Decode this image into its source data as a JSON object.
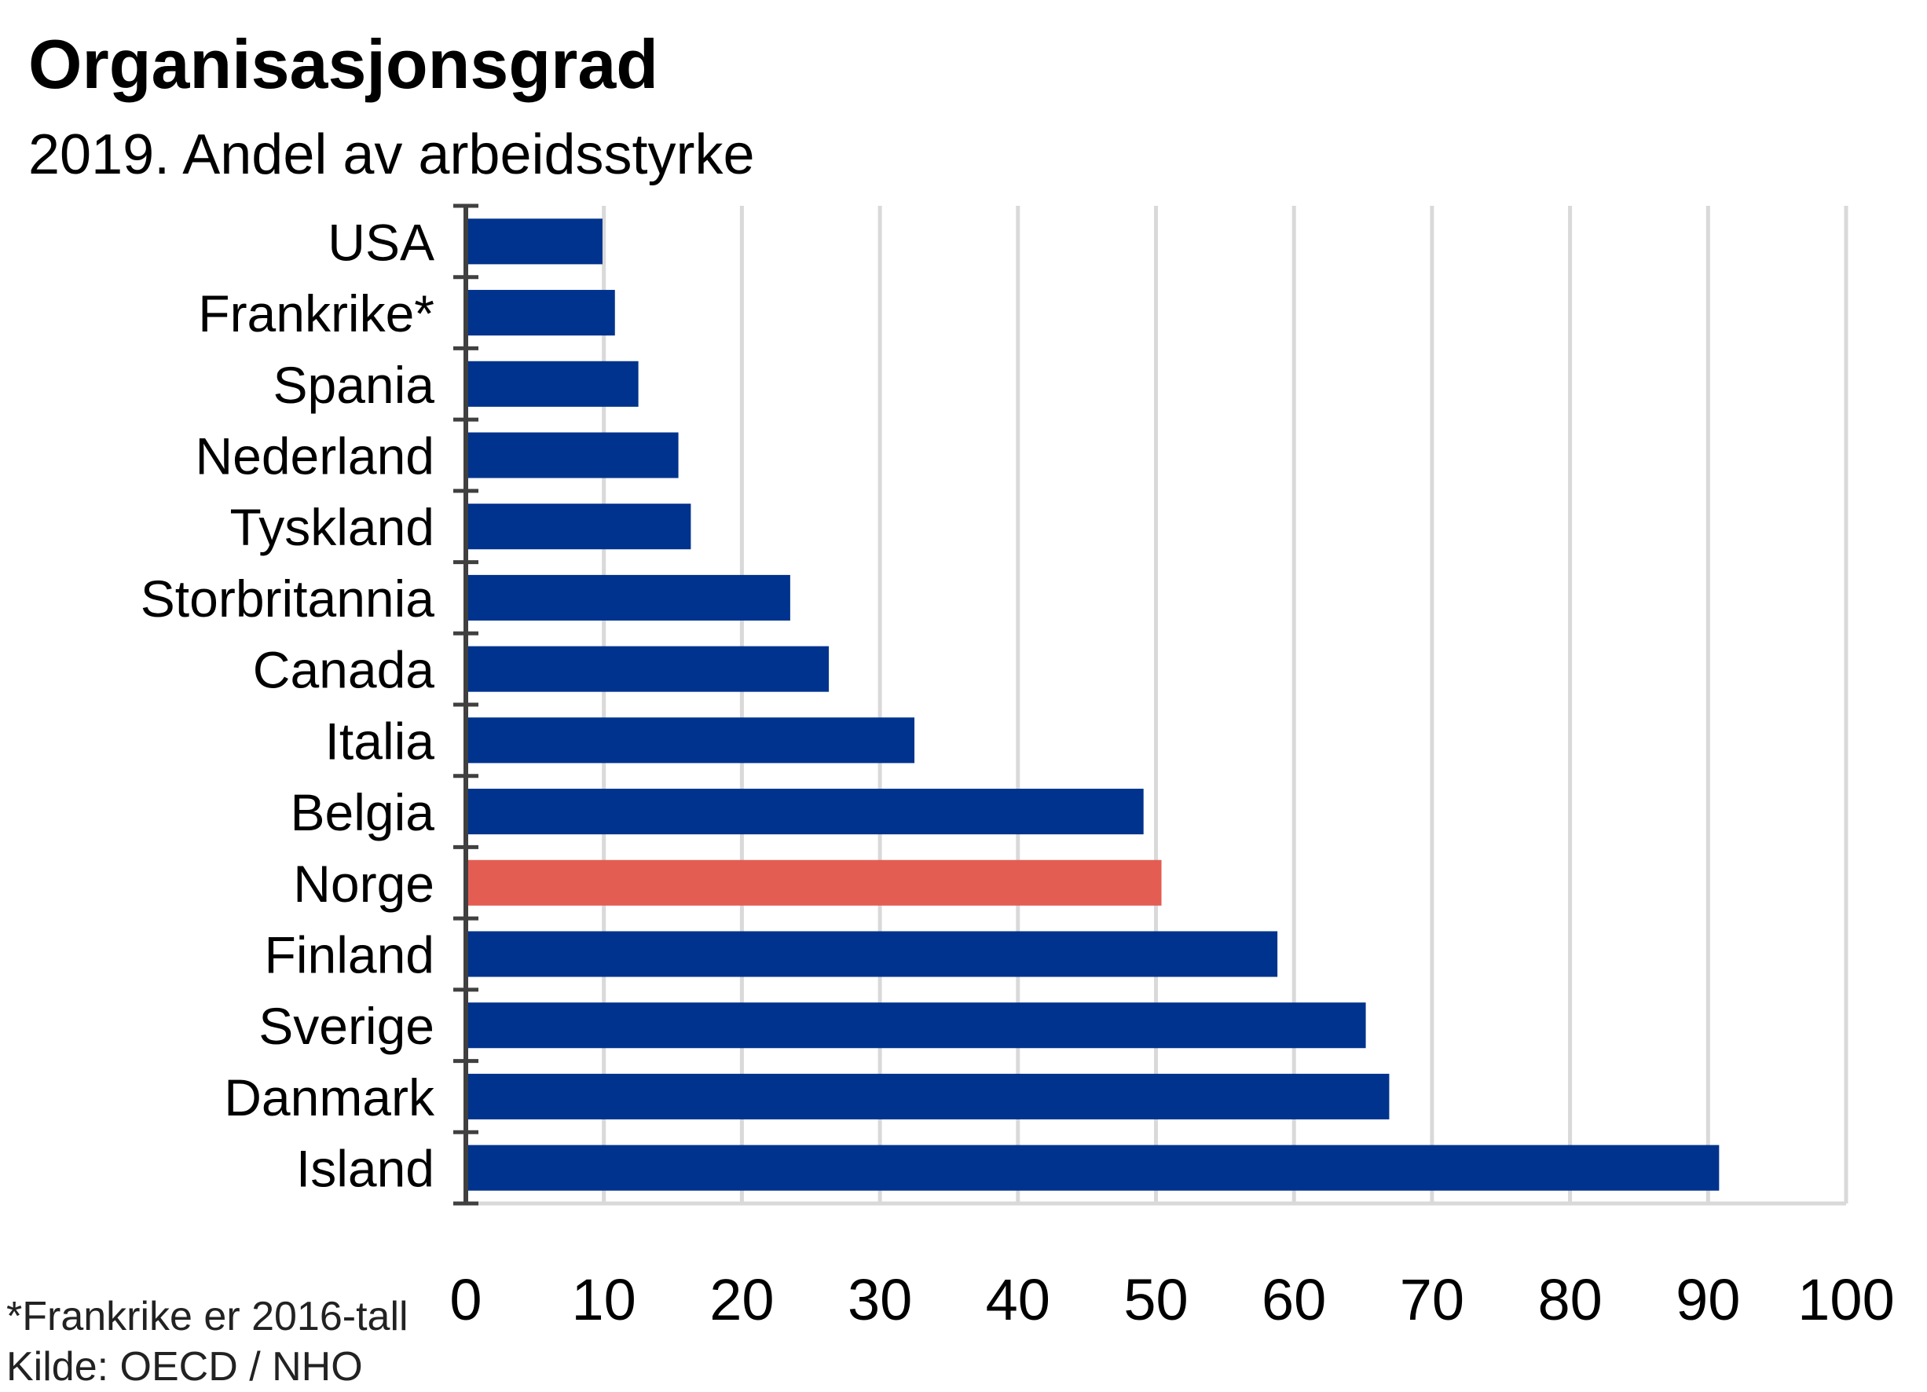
{
  "chart_data": {
    "type": "bar",
    "orientation": "horizontal",
    "title": "Organisasjonsgrad",
    "subtitle": "2019. Andel av arbeidsstyrke",
    "categories": [
      "USA",
      "Frankrike*",
      "Spania",
      "Nederland",
      "Tyskland",
      "Storbritannia",
      "Canada",
      "Italia",
      "Belgia",
      "Norge",
      "Finland",
      "Sverige",
      "Danmark",
      "Island"
    ],
    "values": [
      9.9,
      10.8,
      12.5,
      15.4,
      16.3,
      23.5,
      26.3,
      32.5,
      49.1,
      50.4,
      58.8,
      65.2,
      66.9,
      90.8
    ],
    "highlight_category": "Norge",
    "colors": {
      "bar": "#00338D",
      "highlight": "#E35D52",
      "grid": "#D9D9D9",
      "axis": "#404040"
    },
    "xlim": [
      0,
      100
    ],
    "xticks": [
      0,
      10,
      20,
      30,
      40,
      50,
      60,
      70,
      80,
      90,
      100
    ],
    "xlabel": "",
    "ylabel": "",
    "grid": true,
    "legend": "none"
  },
  "footnote": "*Frankrike er 2016-tall",
  "source": "Kilde: OECD / NHO"
}
